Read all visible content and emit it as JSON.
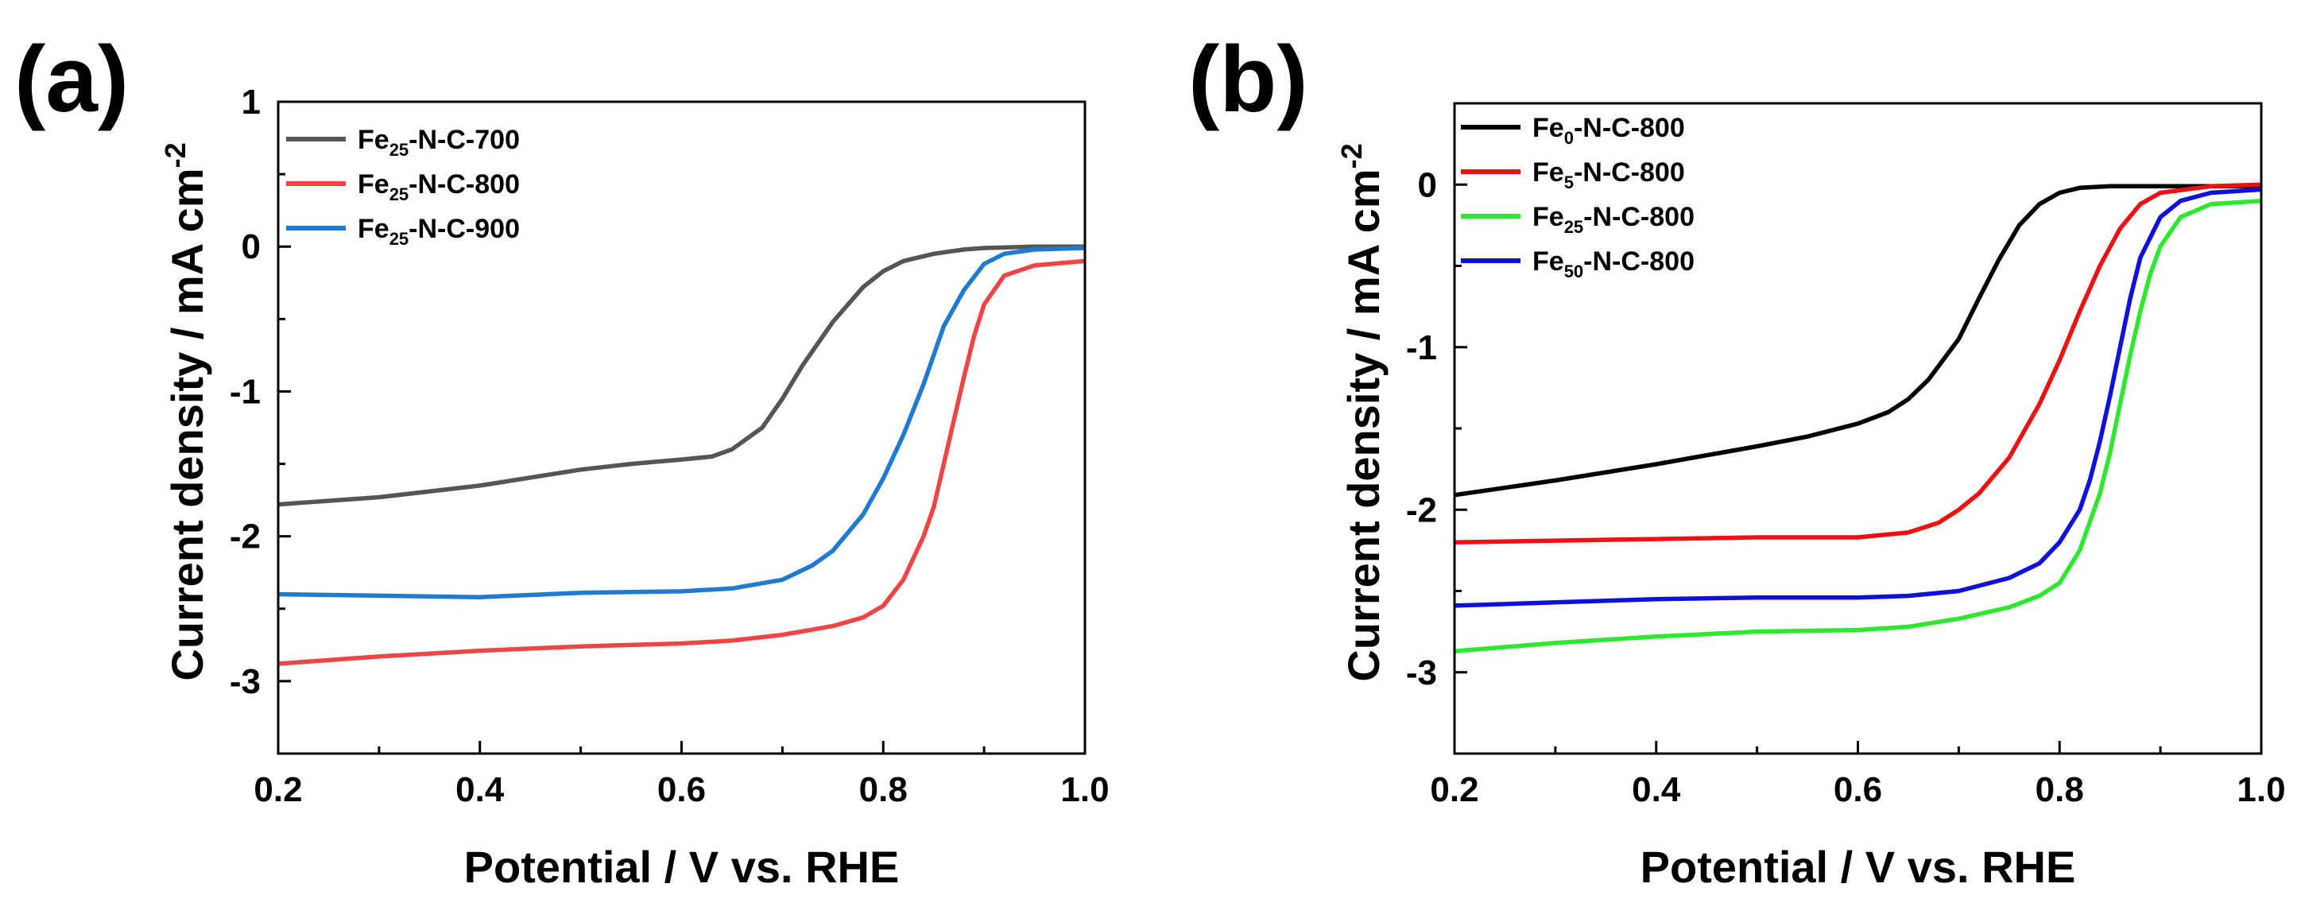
{
  "chart_data": [
    {
      "panel_label": "(a)",
      "type": "line",
      "xlabel": "Potential / V vs. RHE",
      "ylabel": "Current density / mA cm",
      "ylabel_sup": "-2",
      "xlim": [
        0.2,
        1.0
      ],
      "ylim": [
        -3.5,
        1.0
      ],
      "xticks": [
        0.2,
        0.4,
        0.6,
        0.8,
        1.0
      ],
      "xtick_labels": [
        "0.2",
        "0.4",
        "0.6",
        "0.8",
        "1.0"
      ],
      "yticks": [
        1,
        0,
        -1,
        -2,
        -3
      ],
      "ytick_labels": [
        "1",
        "0",
        "-1",
        "-2",
        "-3"
      ],
      "legend_position": "top-left",
      "series": [
        {
          "name": "Fe25-N-C-700",
          "label_pre": "Fe",
          "label_sub": "25",
          "label_post": "-N-C-700",
          "color": "#555555",
          "x": [
            0.2,
            0.3,
            0.4,
            0.5,
            0.55,
            0.6,
            0.63,
            0.65,
            0.68,
            0.7,
            0.72,
            0.75,
            0.78,
            0.8,
            0.82,
            0.85,
            0.88,
            0.9,
            0.95,
            1.0
          ],
          "y": [
            -1.78,
            -1.73,
            -1.65,
            -1.54,
            -1.5,
            -1.47,
            -1.45,
            -1.4,
            -1.25,
            -1.05,
            -0.82,
            -0.52,
            -0.28,
            -0.17,
            -0.1,
            -0.05,
            -0.02,
            -0.01,
            0.0,
            0.0
          ]
        },
        {
          "name": "Fe25-N-C-800",
          "label_pre": "Fe",
          "label_sub": "25",
          "label_post": "-N-C-800",
          "color": "#f04545",
          "x": [
            0.2,
            0.3,
            0.4,
            0.5,
            0.6,
            0.65,
            0.7,
            0.75,
            0.78,
            0.8,
            0.82,
            0.84,
            0.85,
            0.86,
            0.87,
            0.88,
            0.89,
            0.9,
            0.92,
            0.95,
            1.0
          ],
          "y": [
            -2.88,
            -2.83,
            -2.79,
            -2.76,
            -2.74,
            -2.72,
            -2.68,
            -2.62,
            -2.56,
            -2.48,
            -2.3,
            -2.0,
            -1.8,
            -1.5,
            -1.2,
            -0.9,
            -0.62,
            -0.4,
            -0.2,
            -0.13,
            -0.1
          ]
        },
        {
          "name": "Fe25-N-C-900",
          "label_pre": "Fe",
          "label_sub": "25",
          "label_post": "-N-C-900",
          "color": "#1f7bd1",
          "x": [
            0.2,
            0.3,
            0.4,
            0.5,
            0.6,
            0.65,
            0.7,
            0.73,
            0.75,
            0.78,
            0.8,
            0.82,
            0.84,
            0.85,
            0.86,
            0.88,
            0.9,
            0.92,
            0.95,
            1.0
          ],
          "y": [
            -2.4,
            -2.41,
            -2.42,
            -2.39,
            -2.38,
            -2.36,
            -2.3,
            -2.2,
            -2.1,
            -1.85,
            -1.6,
            -1.3,
            -0.95,
            -0.75,
            -0.55,
            -0.3,
            -0.12,
            -0.05,
            -0.02,
            -0.01
          ]
        }
      ]
    },
    {
      "panel_label": "(b)",
      "type": "line",
      "xlabel": "Potential / V vs. RHE",
      "ylabel": "Current density / mA cm",
      "ylabel_sup": "-2",
      "xlim": [
        0.2,
        1.0
      ],
      "ylim": [
        -3.5,
        0.5
      ],
      "xticks": [
        0.2,
        0.4,
        0.6,
        0.8,
        1.0
      ],
      "xtick_labels": [
        "0.2",
        "0.4",
        "0.6",
        "0.8",
        "1.0"
      ],
      "yticks": [
        0,
        -1,
        -2,
        -3
      ],
      "ytick_labels": [
        "0",
        "-1",
        "-2",
        "-3"
      ],
      "legend_position": "top-left",
      "series": [
        {
          "name": "Fe0-N-C-800",
          "label_pre": "Fe",
          "label_sub": "0",
          "label_post": "-N-C-800",
          "color": "#000000",
          "x": [
            0.2,
            0.3,
            0.4,
            0.5,
            0.55,
            0.6,
            0.63,
            0.65,
            0.67,
            0.7,
            0.72,
            0.74,
            0.76,
            0.78,
            0.8,
            0.82,
            0.85,
            0.9,
            1.0
          ],
          "y": [
            -1.91,
            -1.82,
            -1.72,
            -1.61,
            -1.55,
            -1.47,
            -1.4,
            -1.32,
            -1.2,
            -0.95,
            -0.7,
            -0.46,
            -0.25,
            -0.12,
            -0.05,
            -0.02,
            -0.01,
            -0.01,
            -0.01
          ]
        },
        {
          "name": "Fe5-N-C-800",
          "label_pre": "Fe",
          "label_sub": "5",
          "label_post": "-N-C-800",
          "color": "#ee1111",
          "x": [
            0.2,
            0.3,
            0.4,
            0.5,
            0.6,
            0.65,
            0.68,
            0.7,
            0.72,
            0.75,
            0.78,
            0.8,
            0.82,
            0.84,
            0.86,
            0.88,
            0.9,
            0.95,
            1.0
          ],
          "y": [
            -2.2,
            -2.19,
            -2.18,
            -2.17,
            -2.17,
            -2.14,
            -2.08,
            -2.0,
            -1.9,
            -1.68,
            -1.35,
            -1.08,
            -0.78,
            -0.5,
            -0.27,
            -0.12,
            -0.05,
            -0.01,
            0.0
          ]
        },
        {
          "name": "Fe25-N-C-800",
          "label_pre": "Fe",
          "label_sub": "25",
          "label_post": "-N-C-800",
          "color": "#2ee82e",
          "x": [
            0.2,
            0.3,
            0.4,
            0.5,
            0.6,
            0.65,
            0.7,
            0.75,
            0.78,
            0.8,
            0.82,
            0.84,
            0.85,
            0.86,
            0.87,
            0.88,
            0.89,
            0.9,
            0.92,
            0.95,
            1.0
          ],
          "y": [
            -2.87,
            -2.82,
            -2.78,
            -2.75,
            -2.74,
            -2.72,
            -2.67,
            -2.6,
            -2.53,
            -2.45,
            -2.25,
            -1.9,
            -1.65,
            -1.35,
            -1.05,
            -0.78,
            -0.55,
            -0.38,
            -0.2,
            -0.12,
            -0.1
          ]
        },
        {
          "name": "Fe50-N-C-800",
          "label_pre": "Fe",
          "label_sub": "50",
          "label_post": "-N-C-800",
          "color": "#1010dd",
          "x": [
            0.2,
            0.3,
            0.4,
            0.5,
            0.6,
            0.65,
            0.7,
            0.75,
            0.78,
            0.8,
            0.82,
            0.83,
            0.84,
            0.85,
            0.86,
            0.87,
            0.88,
            0.9,
            0.92,
            0.95,
            1.0
          ],
          "y": [
            -2.59,
            -2.57,
            -2.55,
            -2.54,
            -2.54,
            -2.53,
            -2.5,
            -2.42,
            -2.33,
            -2.2,
            -2.0,
            -1.82,
            -1.58,
            -1.3,
            -1.0,
            -0.7,
            -0.45,
            -0.2,
            -0.1,
            -0.05,
            -0.03
          ]
        }
      ]
    }
  ]
}
